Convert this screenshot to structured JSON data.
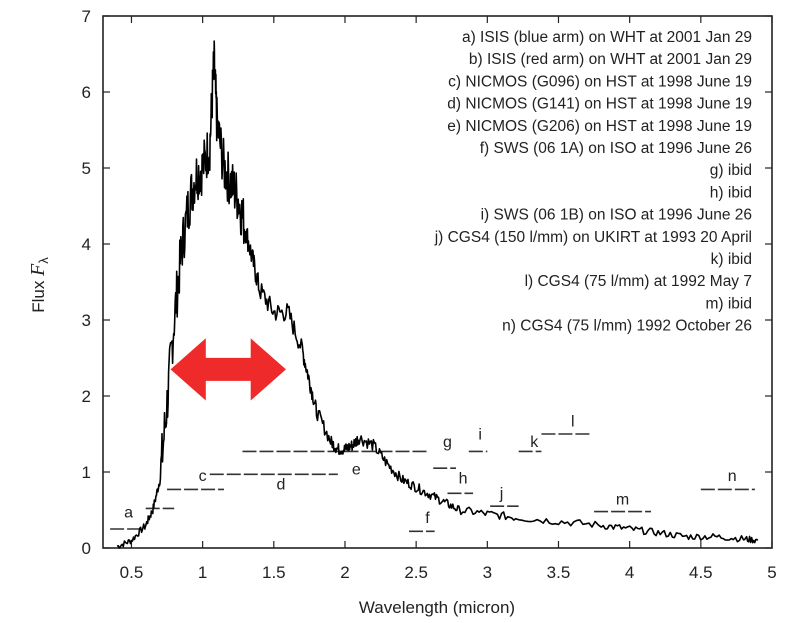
{
  "chart_data": {
    "type": "line",
    "xlabel": "Wavelength (micron)",
    "ylabel_main": "Flux",
    "ylabel_symbol": "F",
    "ylabel_subscript": "λ",
    "xlim": [
      0.3,
      5.0
    ],
    "ylim": [
      0,
      7
    ],
    "x_ticks": [
      0.5,
      1,
      1.5,
      2,
      2.5,
      3,
      3.5,
      4,
      4.5,
      5
    ],
    "x_tick_labels": [
      "0.5",
      "1",
      "1.5",
      "2",
      "2.5",
      "3",
      "3.5",
      "4",
      "4.5",
      "5"
    ],
    "y_ticks": [
      0,
      1,
      2,
      3,
      4,
      5,
      6,
      7
    ],
    "y_tick_labels": [
      "0",
      "1",
      "2",
      "3",
      "4",
      "5",
      "6",
      "7"
    ],
    "legend": [
      "a) ISIS (blue arm) on WHT at 2001 Jan 29",
      "b) ISIS (red arm) on WHT at 2001 Jan 29",
      "c) NICMOS (G096) on HST at 1998 June 19",
      "d) NICMOS (G141) on HST at 1998 June 19",
      "e) NICMOS (G206) on HST at 1998 June 19",
      "f) SWS (06 1A) on ISO at 1996 June 26",
      "g) ibid",
      "h) ibid",
      "i) SWS (06 1B) on ISO at 1996 June 26",
      "j) CGS4 (150 l/mm) on UKIRT at 1993 20 April",
      "k) ibid",
      "l) CGS4 (75 l/mm) at 1992 May 7",
      "m) ibid",
      "n) CGS4 (75 l/mm)  1992 October 26"
    ],
    "spectrum": {
      "x": [
        0.4,
        0.5,
        0.6,
        0.65,
        0.7,
        0.75,
        0.8,
        0.85,
        0.9,
        0.95,
        1.0,
        1.05,
        1.08,
        1.1,
        1.15,
        1.2,
        1.25,
        1.3,
        1.35,
        1.4,
        1.5,
        1.6,
        1.7,
        1.75,
        1.8,
        1.9,
        1.95,
        2.0,
        2.05,
        2.1,
        2.2,
        2.3,
        2.4,
        2.5,
        2.6,
        2.7,
        2.8,
        3.0,
        3.2,
        3.5,
        3.8,
        4.0,
        4.2,
        4.4,
        4.6,
        4.8,
        4.9
      ],
      "y": [
        0.02,
        0.1,
        0.3,
        0.5,
        0.9,
        1.9,
        3.0,
        3.9,
        4.5,
        4.9,
        5.0,
        5.3,
        6.4,
        5.6,
        5.0,
        4.8,
        4.6,
        4.2,
        3.8,
        3.4,
        3.1,
        3.1,
        2.6,
        2.2,
        1.8,
        1.4,
        1.3,
        1.3,
        1.35,
        1.45,
        1.35,
        1.1,
        0.9,
        0.8,
        0.7,
        0.6,
        0.5,
        0.45,
        0.4,
        0.35,
        0.3,
        0.25,
        0.2,
        0.15,
        0.15,
        0.12,
        0.1
      ]
    },
    "segments": [
      {
        "label": "a",
        "x": [
          0.35,
          0.6
        ],
        "y": 0.25,
        "label_x": 0.48,
        "label_y": 0.4
      },
      {
        "label": "b",
        "x": [
          0.6,
          0.8
        ],
        "y": 0.52,
        "label_x": 0.0,
        "label_y": 0.0,
        "hide_label": true
      },
      {
        "label": "c",
        "x": [
          0.75,
          1.15
        ],
        "y": 0.77,
        "label_x": 1.0,
        "label_y": 0.88
      },
      {
        "label": "d",
        "x": [
          1.05,
          1.95
        ],
        "y": 0.97,
        "label_x": 1.55,
        "label_y": 0.77
      },
      {
        "label": "e",
        "x": [
          1.28,
          2.58
        ],
        "y": 1.27,
        "label_x": 2.08,
        "label_y": 0.97
      },
      {
        "label": "f",
        "x": [
          2.45,
          2.63
        ],
        "y": 0.22,
        "label_x": 2.58,
        "label_y": 0.33
      },
      {
        "label": "g",
        "x": [
          2.62,
          2.78
        ],
        "y": 1.05,
        "label_x": 2.72,
        "label_y": 1.33
      },
      {
        "label": "h",
        "x": [
          2.72,
          2.9
        ],
        "y": 0.72,
        "label_x": 2.83,
        "label_y": 0.85
      },
      {
        "label": "i",
        "x": [
          2.87,
          3.0
        ],
        "y": 1.27,
        "label_x": 2.95,
        "label_y": 1.43
      },
      {
        "label": "j",
        "x": [
          3.02,
          3.22
        ],
        "y": 0.55,
        "label_x": 3.1,
        "label_y": 0.65
      },
      {
        "label": "k",
        "x": [
          3.22,
          3.38
        ],
        "y": 1.27,
        "label_x": 3.33,
        "label_y": 1.33
      },
      {
        "label": "l",
        "x": [
          3.38,
          3.72
        ],
        "y": 1.5,
        "label_x": 3.6,
        "label_y": 1.6
      },
      {
        "label": "m",
        "x": [
          3.75,
          4.15
        ],
        "y": 0.48,
        "label_x": 3.95,
        "label_y": 0.57
      },
      {
        "label": "n",
        "x": [
          4.5,
          4.88
        ],
        "y": 0.77,
        "label_x": 4.72,
        "label_y": 0.88
      }
    ],
    "annotation": {
      "type": "double-arrow",
      "color": "#ee2a2a",
      "x_from": 0.78,
      "x_to": 1.58,
      "y": 2.35
    },
    "grid": false,
    "legend_position": "top-right"
  }
}
